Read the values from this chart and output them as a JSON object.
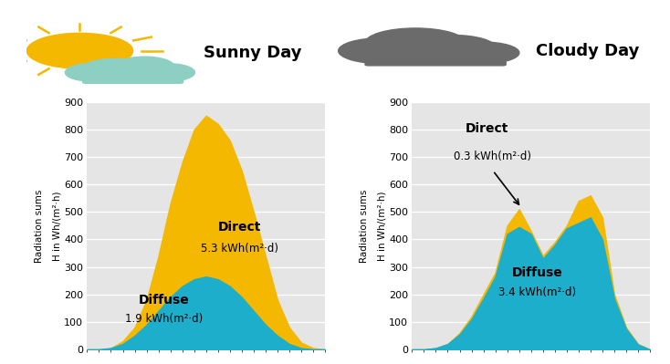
{
  "sunny_title": "Sunny Day",
  "cloudy_title": "Cloudy Day",
  "ylim": [
    0,
    900
  ],
  "yticks": [
    0,
    100,
    200,
    300,
    400,
    500,
    600,
    700,
    800,
    900
  ],
  "ylabel": "H in Wh/(m²·h)",
  "ylabel2": "Radiation sums",
  "bg_color": "#e5e5e5",
  "direct_color": "#F5B800",
  "diffuse_color": "#1DAECC",
  "sunny_direct_label": "Direct",
  "sunny_direct_value": "5.3 kWh(m²·d)",
  "sunny_diffuse_label": "Diffuse",
  "sunny_diffuse_value": "1.9 kWh(m²·d)",
  "cloudy_direct_label": "Direct",
  "cloudy_direct_value": "0.3 kWh(m²·d)",
  "cloudy_diffuse_label": "Diffuse",
  "cloudy_diffuse_value": "3.4 kWh(m²·d)",
  "sunny_x": [
    0,
    1,
    2,
    3,
    4,
    5,
    6,
    7,
    8,
    9,
    10,
    11,
    12,
    13,
    14,
    15,
    16,
    17,
    18,
    19,
    20
  ],
  "sunny_direct": [
    0,
    0,
    5,
    30,
    80,
    180,
    340,
    530,
    680,
    800,
    850,
    820,
    760,
    650,
    500,
    340,
    180,
    80,
    25,
    5,
    0
  ],
  "sunny_diffuse": [
    0,
    0,
    5,
    20,
    50,
    90,
    140,
    190,
    230,
    255,
    265,
    255,
    230,
    190,
    140,
    90,
    50,
    20,
    5,
    0,
    0
  ],
  "cloudy_x": [
    0,
    1,
    2,
    3,
    4,
    5,
    6,
    7,
    8,
    9,
    10,
    11,
    12,
    13,
    14,
    15,
    16,
    17,
    18,
    19,
    20
  ],
  "cloudy_total": [
    0,
    0,
    5,
    20,
    60,
    120,
    200,
    280,
    450,
    510,
    430,
    340,
    390,
    450,
    540,
    560,
    480,
    200,
    80,
    20,
    0
  ],
  "cloudy_diffuse": [
    0,
    0,
    5,
    20,
    55,
    110,
    185,
    265,
    420,
    445,
    420,
    330,
    380,
    440,
    460,
    480,
    400,
    185,
    75,
    18,
    0
  ]
}
